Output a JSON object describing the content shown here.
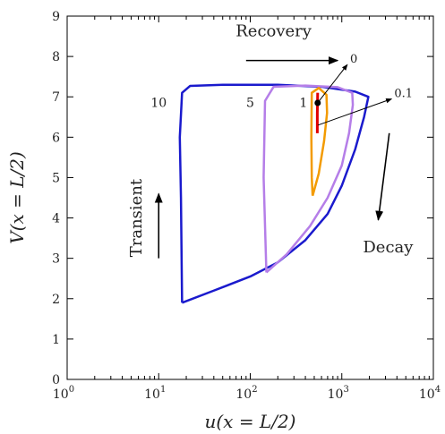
{
  "chart_data": {
    "type": "line",
    "xlabel": "u(x = L/2)",
    "ylabel": "V(x = L/2)",
    "xscale": "log",
    "xlim": [
      1,
      10000
    ],
    "ylim": [
      0,
      9
    ],
    "grid": false,
    "x_ticks": [
      {
        "value": 1,
        "base": "10",
        "exp": "0"
      },
      {
        "value": 10,
        "base": "10",
        "exp": "1"
      },
      {
        "value": 100,
        "base": "10",
        "exp": "2"
      },
      {
        "value": 1000,
        "base": "10",
        "exp": "3"
      },
      {
        "value": 10000,
        "base": "10",
        "exp": "4"
      }
    ],
    "y_ticks": [
      "0",
      "1",
      "2",
      "3",
      "4",
      "5",
      "6",
      "7",
      "8",
      "9"
    ],
    "series": [
      {
        "name": "10",
        "color": "#1a1acd",
        "points": [
          [
            18,
            1.9
          ],
          [
            40,
            2.2
          ],
          [
            100,
            2.55
          ],
          [
            200,
            2.9
          ],
          [
            400,
            3.45
          ],
          [
            700,
            4.1
          ],
          [
            1000,
            4.8
          ],
          [
            1400,
            5.7
          ],
          [
            1750,
            6.5
          ],
          [
            1950,
            7.0
          ],
          [
            1400,
            7.13
          ],
          [
            600,
            7.25
          ],
          [
            200,
            7.3
          ],
          [
            50,
            7.3
          ],
          [
            22,
            7.27
          ],
          [
            18,
            7.1
          ],
          [
            17,
            6.0
          ],
          [
            17.5,
            4.5
          ],
          [
            18,
            1.9
          ]
        ]
      },
      {
        "name": "5",
        "color": "#b57ee8",
        "points": [
          [
            150,
            2.65
          ],
          [
            250,
            3.1
          ],
          [
            450,
            3.8
          ],
          [
            700,
            4.5
          ],
          [
            1000,
            5.3
          ],
          [
            1200,
            6.1
          ],
          [
            1320,
            6.8
          ],
          [
            1300,
            7.1
          ],
          [
            900,
            7.24
          ],
          [
            400,
            7.28
          ],
          [
            180,
            7.25
          ],
          [
            145,
            6.9
          ],
          [
            140,
            5.0
          ],
          [
            150,
            2.65
          ]
        ]
      },
      {
        "name": "1",
        "color": "#f39b00",
        "points": [
          [
            480,
            4.55
          ],
          [
            560,
            5.1
          ],
          [
            640,
            5.9
          ],
          [
            690,
            6.6
          ],
          [
            680,
            7.05
          ],
          [
            560,
            7.22
          ],
          [
            470,
            7.1
          ],
          [
            465,
            6.0
          ],
          [
            470,
            5.0
          ],
          [
            480,
            4.55
          ]
        ]
      },
      {
        "name": "",
        "color": "#e00000",
        "points": [
          [
            540,
            6.1
          ],
          [
            540,
            6.6
          ],
          [
            545,
            7.1
          ]
        ]
      }
    ],
    "curve_labels": [
      {
        "text": "10",
        "x": 10,
        "y": 6.75
      },
      {
        "text": "5",
        "x": 100,
        "y": 6.75
      },
      {
        "text": "1",
        "x": 380,
        "y": 6.75
      }
    ],
    "marker": {
      "x": 545,
      "y": 6.85,
      "color": "#000000"
    },
    "pointers": [
      {
        "label": "0",
        "from": [
          545,
          6.85
        ],
        "to": [
          1150,
          7.8
        ]
      },
      {
        "label": "0.1",
        "from": [
          550,
          6.3
        ],
        "to": [
          3500,
          6.95
        ]
      }
    ],
    "annotations": [
      {
        "text": "Recovery",
        "x": 180,
        "y": 8.5,
        "arrow_from": [
          90,
          7.9
        ],
        "arrow_to": [
          900,
          7.9
        ]
      },
      {
        "text": "Transient",
        "x": 6.5,
        "y": 4.0,
        "rotated": true,
        "arrow_from": [
          10,
          3.0
        ],
        "arrow_to": [
          10,
          4.6
        ]
      },
      {
        "text": "Decay",
        "x": 3200,
        "y": 3.15,
        "arrow_from": [
          3300,
          6.1
        ],
        "arrow_to": [
          2500,
          3.95
        ]
      }
    ]
  }
}
